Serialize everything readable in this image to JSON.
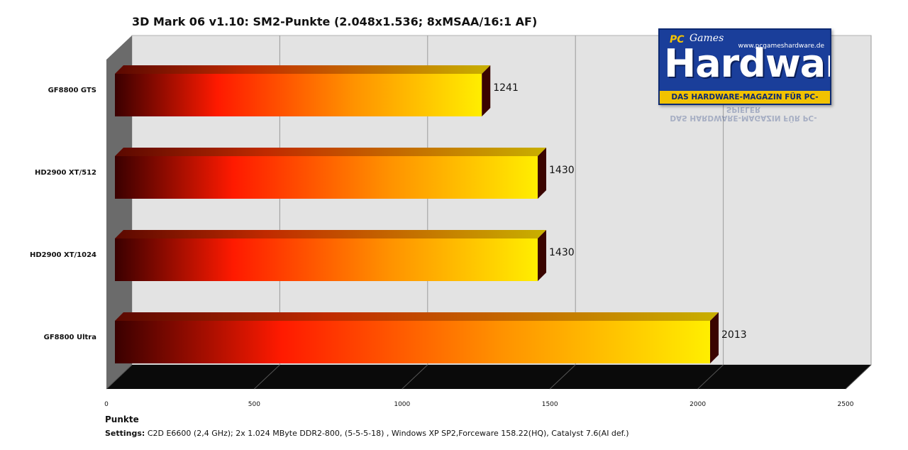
{
  "chart_data": {
    "type": "bar",
    "orientation": "horizontal",
    "title": "3D Mark  06 v1.10:  SM2-Punkte  (2.048x1.536;  8xMSAA/16:1  AF)",
    "categories": [
      "GF8800 GTS",
      "HD2900 XT/512",
      "HD2900 XT/1024",
      "GF8800 Ultra"
    ],
    "values": [
      1241,
      1430,
      1430,
      2013
    ],
    "value_labels": [
      "1241",
      "1430",
      "1430",
      "2013"
    ],
    "xlabel": "Punkte",
    "xlim": [
      0,
      2500
    ],
    "x_ticks": [
      0,
      500,
      1000,
      1500,
      2000,
      2500
    ],
    "x_tick_labels": [
      "0",
      "500",
      "1000",
      "1500",
      "2000",
      "2500"
    ],
    "grid": true,
    "gradient_colors": [
      "#3a0000",
      "#ff2200",
      "#ff8a00",
      "#ffee00"
    ]
  },
  "footer": {
    "settings_label": "Settings:",
    "settings_text": " C2D E6600 (2,4 GHz); 2x 1.024 MByte DDR2-800, (5-5-5-18) , Windows XP SP2,Forceware 158.22(HQ), Catalyst 7.6(AI def.)"
  },
  "logo": {
    "url": "www.pcgameshardware.de",
    "pc": "PC",
    "games": "Games",
    "main": "Hardware",
    "sub": "DAS HARDWARE-MAGAZIN FÜR PC-SPIELER"
  }
}
